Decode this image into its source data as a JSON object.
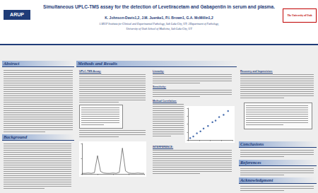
{
  "header": {
    "title": "Simultaneous UPLC-TMS assay for the detection of Levetiracetam and Gabapentin in serum and plasma.",
    "authors": "K. Johnson-Davis1,2, J.M. Juenke1, P.I. Brown1, G.A. McMillin1,2",
    "affiliation1": "1ARUP Institute for Clinical and Experimental Pathology, Salt Lake City, UT; 2Department of Pathology,",
    "affiliation2": "University of Utah School of Medicine, Salt Lake City, UT",
    "logo_left": "ARUP",
    "logo_right": "The University of Utah"
  },
  "sections": {
    "abstract": "Abstract",
    "methods": "Methods and Results",
    "background": "Background",
    "conclusions": "Conclusions",
    "references": "References",
    "acknowledgment": "Acknowledgment"
  },
  "subheadings": {
    "assay": "UPLC-TMS Assay:",
    "linearity": "Linearity:",
    "sensitivity": "Sensitivity:",
    "correlation": "Method Correlation:",
    "interference": "INTERFERENCE:",
    "recovery": "Recovery and Imprecision:"
  },
  "chart_data": [
    {
      "type": "scatter",
      "x": [
        5,
        12,
        20,
        28,
        35,
        45,
        55,
        62,
        70,
        80,
        90
      ],
      "values": [
        6,
        11,
        21,
        27,
        36,
        44,
        56,
        61,
        72,
        79,
        91
      ],
      "color": "#1f4e9c",
      "xlim": [
        0,
        100
      ],
      "ylim": [
        0,
        100
      ],
      "xticks": [
        0,
        25,
        50,
        75,
        100
      ],
      "yticks": [
        0,
        25,
        50,
        75,
        100
      ],
      "grid": false,
      "tick_labels": false
    },
    {
      "type": "line",
      "x": [
        0,
        0.1,
        0.2,
        0.3,
        0.4,
        0.5,
        0.6,
        0.7,
        0.8,
        0.9,
        1.0,
        1.1,
        1.2,
        1.3,
        1.4,
        1.5,
        1.6,
        1.7,
        1.8,
        1.9,
        2.0
      ],
      "values": [
        2,
        2,
        3,
        2,
        4,
        60,
        8,
        3,
        2,
        2,
        3,
        2,
        5,
        85,
        10,
        3,
        2,
        2,
        3,
        2,
        2
      ],
      "color": "#333333",
      "xlim": [
        0,
        2
      ],
      "ylim": [
        0,
        100
      ],
      "xticks": [
        0,
        0.5,
        1,
        1.5,
        2
      ],
      "yticks": [
        0,
        50,
        100
      ],
      "grid": false,
      "tick_labels": false
    }
  ]
}
